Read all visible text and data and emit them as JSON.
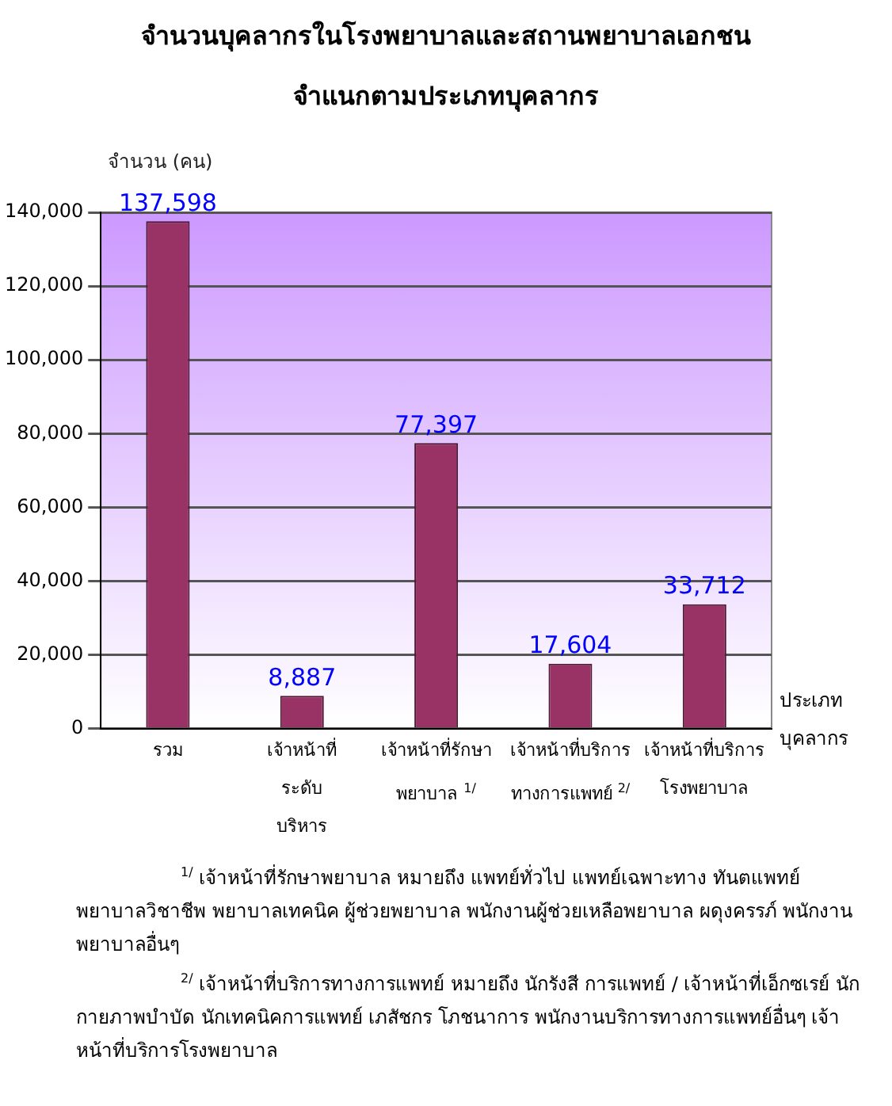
{
  "chart_data": {
    "type": "bar",
    "title": "จำนวนบุคลากรในโรงพยาบาลและสถานพยาบาลเอกชน",
    "subtitle": "จำแนกตามประเภทบุคลากร",
    "ylabel": "จำนวน (คน)",
    "xlabel": "ประเภท บุคลากร",
    "categories": [
      "รวม",
      "เจ้าหน้าที่ระดับบริหาร",
      "เจ้าหน้าที่รักษาพยาบาล $^{1/}$",
      "เจ้าหน้าที่บริการทางการแพทย์ $^{2/}$",
      "เจ้าหน้าที่บริการโรงพยาบาล"
    ],
    "values": [
      137598,
      8887,
      77397,
      17604,
      33712
    ],
    "color": "#993366",
    "ylim": [
      0,
      140000
    ],
    "yticks": [
      {
        "value": 0,
        "label": "0"
      },
      {
        "value": 20000,
        "label": "20,000"
      },
      {
        "value": 40000,
        "label": "40,000"
      },
      {
        "value": 60000,
        "label": "60,000"
      },
      {
        "value": 80000,
        "label": "80,000"
      },
      {
        "value": 100000,
        "label": "100,000"
      },
      {
        "value": 120000,
        "label": "120,000"
      },
      {
        "value": 140000,
        "label": "140,000"
      }
    ],
    "grid": "y",
    "value_labels": [
      "137,598",
      "8,887",
      "77,397",
      "17,604",
      "33,712"
    ],
    "annotations": [
      "$^{1/}$ เจ้าหน้าที่รักษาพยาบาล หมายถึง แพทย์ทั่วไป แพทย์เฉพาะทาง ทันตแพทย์ พยาบาลวิชาชีพ พยาบาลเทคนิค ผู้ช่วยพยาบาล พนักงานผู้ช่วยเหลือพยาบาล ผดุงครรภ์ พนักงานพยาบาลอื่นๆ",
      "$^{2/}$ เจ้าหน้าที่บริการทางการแพทย์ หมายถึง นักรังสี การแพทย์ / เจ้าหน้าที่เอ็กซเรย์ นักกายภาพบำบัด นักเทคนิคการแพทย์ เภสัชกร โภชนาการ พนักงานบริการทางการแพทย์อื่นๆ เจ้าหน้าที่บริการโรงพยาบาล"
    ]
  }
}
